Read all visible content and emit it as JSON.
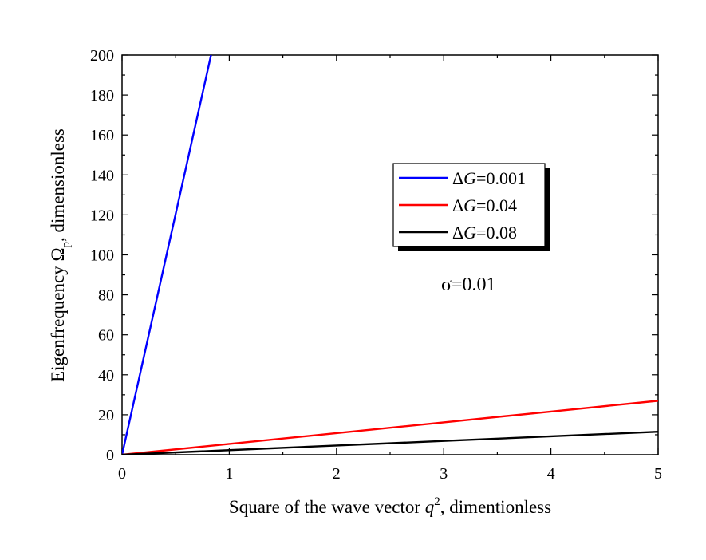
{
  "chart_data": {
    "type": "line",
    "xlabel": {
      "prefix": "Square of the wave vector ",
      "var": "q",
      "sup": "2",
      "suffix": ", dimentionless"
    },
    "ylabel": {
      "prefix": "Eigenfrequency Ω",
      "sub": "p",
      "suffix": ", dimensionless"
    },
    "xlim": [
      0,
      5
    ],
    "ylim": [
      0,
      200
    ],
    "xticks": [
      "0",
      "1",
      "2",
      "3",
      "4",
      "5"
    ],
    "yticks": [
      "0",
      "20",
      "40",
      "60",
      "80",
      "100",
      "120",
      "140",
      "160",
      "180",
      "200"
    ],
    "annotation": "σ=0.01",
    "legend_position": "upper-right-center",
    "series": [
      {
        "name": "ΔG=0.001",
        "legend": {
          "delta": "Δ",
          "var": "G",
          "value": "=0.001"
        },
        "color": "#0000ff",
        "x": [
          0,
          0.83
        ],
        "y": [
          0,
          200
        ]
      },
      {
        "name": "ΔG=0.04",
        "legend": {
          "delta": "Δ",
          "var": "G",
          "value": "=0.04"
        },
        "color": "#ff0000",
        "x": [
          0,
          1,
          2,
          3,
          4,
          5
        ],
        "y": [
          0,
          5.4,
          10.8,
          16.2,
          21.6,
          27
        ]
      },
      {
        "name": "ΔG=0.08",
        "legend": {
          "delta": "Δ",
          "var": "G",
          "value": "=0.08"
        },
        "color": "#000000",
        "x": [
          0,
          1,
          2,
          3,
          4,
          5
        ],
        "y": [
          0,
          2.3,
          4.6,
          6.9,
          9.2,
          11.5
        ]
      }
    ]
  }
}
